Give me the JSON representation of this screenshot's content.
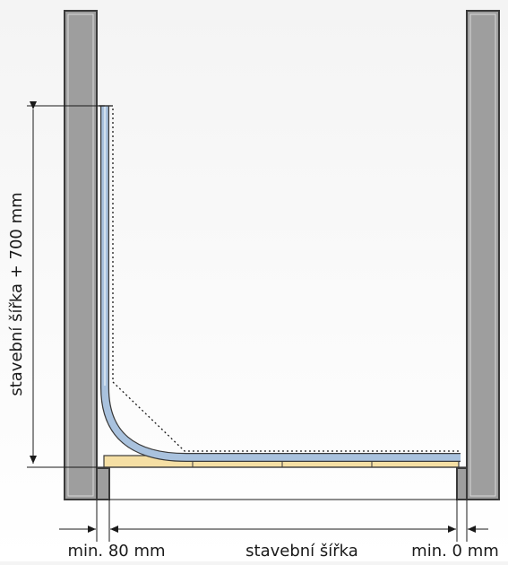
{
  "labels": {
    "vertical_dimension": "stavební šířka + 700 mm",
    "left_clearance": "min. 80 mm",
    "width": "stavební šířka",
    "right_clearance": "min. 0 mm"
  },
  "colors": {
    "wall_fill": "#9e9e9e",
    "wall_outline": "#3a3a3a",
    "panel_fill": "#a9c2de",
    "base_fill": "#f5dfa4",
    "line": "#1a1a1a"
  }
}
